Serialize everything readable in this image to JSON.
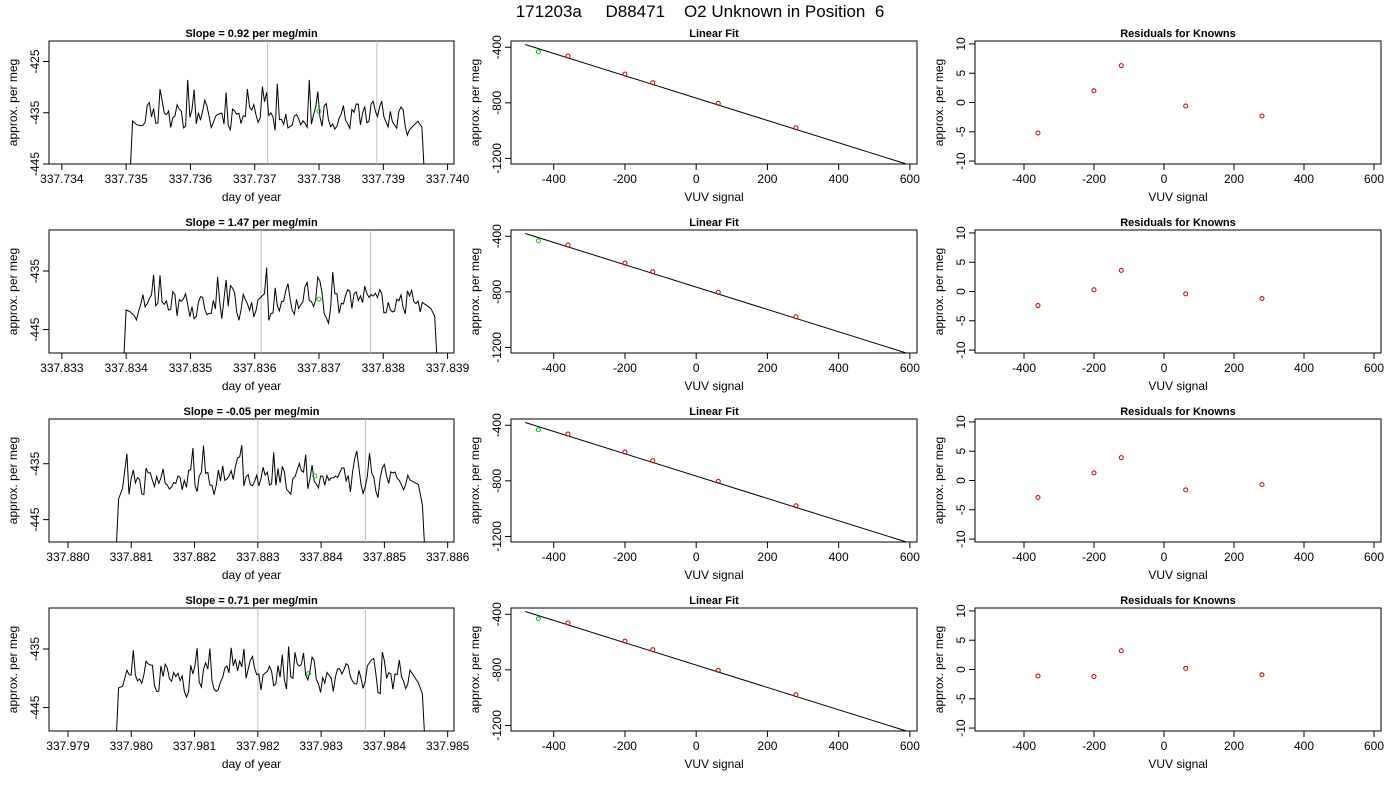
{
  "title": "171203a     D88471    O2 Unknown in Position  6",
  "colors": {
    "trace": "#000000",
    "grid_line": "#bebebe",
    "known_point": "#cc0000",
    "unknown_point": "#00cc00",
    "axis": "#000000"
  },
  "chart_data": [
    {
      "type": "line",
      "row": 0,
      "col": 0,
      "title": "Slope =  0.92  per meg/min",
      "xlabel": "day of year",
      "ylabel": "approx. per meg",
      "xlim": [
        337.7338,
        337.7401
      ],
      "ylim": [
        -445,
        -421
      ],
      "xticks": [
        "337.734",
        "337.735",
        "337.736",
        "337.737",
        "337.738",
        "337.739",
        "337.740"
      ],
      "yticks": [
        "-425",
        "-435",
        "-445"
      ],
      "vlines": [
        337.7372,
        337.7389
      ],
      "trace_start": 337.7351,
      "trace_end": 337.7396,
      "trace_level": -435.3,
      "green_point": [
        337.738,
        -434.7
      ]
    },
    {
      "type": "scatter",
      "row": 0,
      "col": 1,
      "title": "Linear Fit",
      "xlabel": "VUV signal",
      "ylabel": "approx. per meg",
      "xlim": [
        -520,
        620
      ],
      "ylim": [
        -1240,
        -355
      ],
      "xticks": [
        "-400",
        "-200",
        "0",
        "200",
        "400",
        "600"
      ],
      "yticks": [
        "-400",
        "-800",
        "-1200"
      ],
      "fit_line": [
        [
          -480,
          -380
        ],
        [
          590,
          -1240
        ]
      ],
      "known_points": [
        [
          -360,
          -463
        ],
        [
          -200,
          -593
        ],
        [
          -122,
          -655
        ],
        [
          62,
          -804
        ],
        [
          280,
          -979
        ]
      ],
      "unknown_points": [
        [
          -443,
          -432
        ]
      ]
    },
    {
      "type": "scatter",
      "row": 0,
      "col": 2,
      "title": "Residuals for Knowns",
      "xlabel": "VUV signal",
      "ylabel": "approx. per meg",
      "xlim": [
        -540,
        620
      ],
      "ylim": [
        -10.5,
        10.5
      ],
      "xticks": [
        "-400",
        "-200",
        "0",
        "200",
        "400",
        "600"
      ],
      "yticks": [
        "10",
        "5",
        "0",
        "-5",
        "-10"
      ],
      "points": [
        [
          -360,
          -5.2
        ],
        [
          -200,
          2.0
        ],
        [
          -122,
          6.3
        ],
        [
          62,
          -0.6
        ],
        [
          280,
          -2.3
        ]
      ]
    },
    {
      "type": "line",
      "row": 1,
      "col": 0,
      "title": "Slope =  1.47  per meg/min",
      "xlabel": "day of year",
      "ylabel": "approx. per meg",
      "xlim": [
        337.8328,
        337.8391
      ],
      "ylim": [
        -449,
        -428
      ],
      "xticks": [
        "337.833",
        "337.834",
        "337.835",
        "337.836",
        "337.837",
        "337.838",
        "337.839"
      ],
      "yticks": [
        "-435",
        "-445"
      ],
      "vlines": [
        337.8361,
        337.8378
      ],
      "trace_start": 337.834,
      "trace_end": 337.8388,
      "trace_level": -440.2,
      "green_point": [
        337.837,
        -439.8
      ]
    },
    {
      "type": "scatter",
      "row": 1,
      "col": 1,
      "title": "Linear Fit",
      "xlabel": "VUV signal",
      "ylabel": "approx. per meg",
      "xlim": [
        -520,
        620
      ],
      "ylim": [
        -1240,
        -355
      ],
      "xticks": [
        "-400",
        "-200",
        "0",
        "200",
        "400",
        "600"
      ],
      "yticks": [
        "-400",
        "-800",
        "-1200"
      ],
      "fit_line": [
        [
          -480,
          -380
        ],
        [
          590,
          -1240
        ]
      ],
      "known_points": [
        [
          -360,
          -463
        ],
        [
          -200,
          -593
        ],
        [
          -122,
          -655
        ],
        [
          62,
          -804
        ],
        [
          280,
          -979
        ]
      ],
      "unknown_points": [
        [
          -443,
          -432
        ]
      ]
    },
    {
      "type": "scatter",
      "row": 1,
      "col": 2,
      "title": "Residuals for Knowns",
      "xlabel": "VUV signal",
      "ylabel": "approx. per meg",
      "xlim": [
        -540,
        620
      ],
      "ylim": [
        -10.5,
        10.5
      ],
      "xticks": [
        "-400",
        "-200",
        "0",
        "200",
        "400",
        "600"
      ],
      "yticks": [
        "10",
        "5",
        "0",
        "-5",
        "-10"
      ],
      "points": [
        [
          -360,
          -2.4
        ],
        [
          -200,
          0.3
        ],
        [
          -122,
          3.6
        ],
        [
          62,
          -0.4
        ],
        [
          280,
          -1.2
        ]
      ]
    },
    {
      "type": "line",
      "row": 2,
      "col": 0,
      "title": "Slope =  -0.05  per meg/min",
      "xlabel": "day of year",
      "ylabel": "approx. per meg",
      "xlim": [
        337.8797,
        337.8861
      ],
      "ylim": [
        -449,
        -427
      ],
      "xticks": [
        "337.880",
        "337.881",
        "337.882",
        "337.883",
        "337.884",
        "337.885",
        "337.886"
      ],
      "yticks": [
        "-435",
        "-445"
      ],
      "vlines": [
        337.883,
        337.8847
      ],
      "trace_start": 337.8808,
      "trace_end": 337.8856,
      "trace_level": -437.5,
      "green_point": [
        337.8839,
        -437.2
      ]
    },
    {
      "type": "scatter",
      "row": 2,
      "col": 1,
      "title": "Linear Fit",
      "xlabel": "VUV signal",
      "ylabel": "approx. per meg",
      "xlim": [
        -520,
        620
      ],
      "ylim": [
        -1240,
        -355
      ],
      "xticks": [
        "-400",
        "-200",
        "0",
        "200",
        "400",
        "600"
      ],
      "yticks": [
        "-400",
        "-800",
        "-1200"
      ],
      "fit_line": [
        [
          -480,
          -380
        ],
        [
          590,
          -1240
        ]
      ],
      "known_points": [
        [
          -360,
          -463
        ],
        [
          -200,
          -593
        ],
        [
          -122,
          -655
        ],
        [
          62,
          -804
        ],
        [
          280,
          -979
        ]
      ],
      "unknown_points": [
        [
          -443,
          -432
        ]
      ]
    },
    {
      "type": "scatter",
      "row": 2,
      "col": 2,
      "title": "Residuals for Knowns",
      "xlabel": "VUV signal",
      "ylabel": "approx. per meg",
      "xlim": [
        -540,
        620
      ],
      "ylim": [
        -10.5,
        10.5
      ],
      "xticks": [
        "-400",
        "-200",
        "0",
        "200",
        "400",
        "600"
      ],
      "yticks": [
        "10",
        "5",
        "0",
        "-5",
        "-10"
      ],
      "points": [
        [
          -360,
          -2.9
        ],
        [
          -200,
          1.3
        ],
        [
          -122,
          3.9
        ],
        [
          62,
          -1.6
        ],
        [
          280,
          -0.7
        ]
      ]
    },
    {
      "type": "line",
      "row": 3,
      "col": 0,
      "title": "Slope =  0.71  per meg/min",
      "xlabel": "day of year",
      "ylabel": "approx. per meg",
      "xlim": [
        337.9787,
        337.9851
      ],
      "ylim": [
        -449,
        -428
      ],
      "xticks": [
        "337.979",
        "337.980",
        "337.981",
        "337.982",
        "337.983",
        "337.984",
        "337.985"
      ],
      "yticks": [
        "-435",
        "-445"
      ],
      "vlines": [
        337.982,
        337.9837
      ],
      "trace_start": 337.9798,
      "trace_end": 337.9846,
      "trace_level": -439.6,
      "green_point": [
        337.9828,
        -439.2
      ]
    },
    {
      "type": "scatter",
      "row": 3,
      "col": 1,
      "title": "Linear Fit",
      "xlabel": "VUV signal",
      "ylabel": "approx. per meg",
      "xlim": [
        -520,
        620
      ],
      "ylim": [
        -1240,
        -355
      ],
      "xticks": [
        "-400",
        "-200",
        "0",
        "200",
        "400",
        "600"
      ],
      "yticks": [
        "-400",
        "-800",
        "-1200"
      ],
      "fit_line": [
        [
          -480,
          -380
        ],
        [
          590,
          -1240
        ]
      ],
      "known_points": [
        [
          -360,
          -463
        ],
        [
          -200,
          -593
        ],
        [
          -122,
          -655
        ],
        [
          62,
          -804
        ],
        [
          280,
          -979
        ]
      ],
      "unknown_points": [
        [
          -443,
          -432
        ]
      ]
    },
    {
      "type": "scatter",
      "row": 3,
      "col": 2,
      "title": "Residuals for Knowns",
      "xlabel": "VUV signal",
      "ylabel": "approx. per meg",
      "xlim": [
        -540,
        620
      ],
      "ylim": [
        -10.5,
        10.5
      ],
      "xticks": [
        "-400",
        "-200",
        "0",
        "200",
        "400",
        "600"
      ],
      "yticks": [
        "10",
        "5",
        "0",
        "-5",
        "-10"
      ],
      "points": [
        [
          -360,
          -1.1
        ],
        [
          -200,
          -1.2
        ],
        [
          -122,
          3.2
        ],
        [
          62,
          0.2
        ],
        [
          280,
          -0.9
        ]
      ]
    }
  ]
}
